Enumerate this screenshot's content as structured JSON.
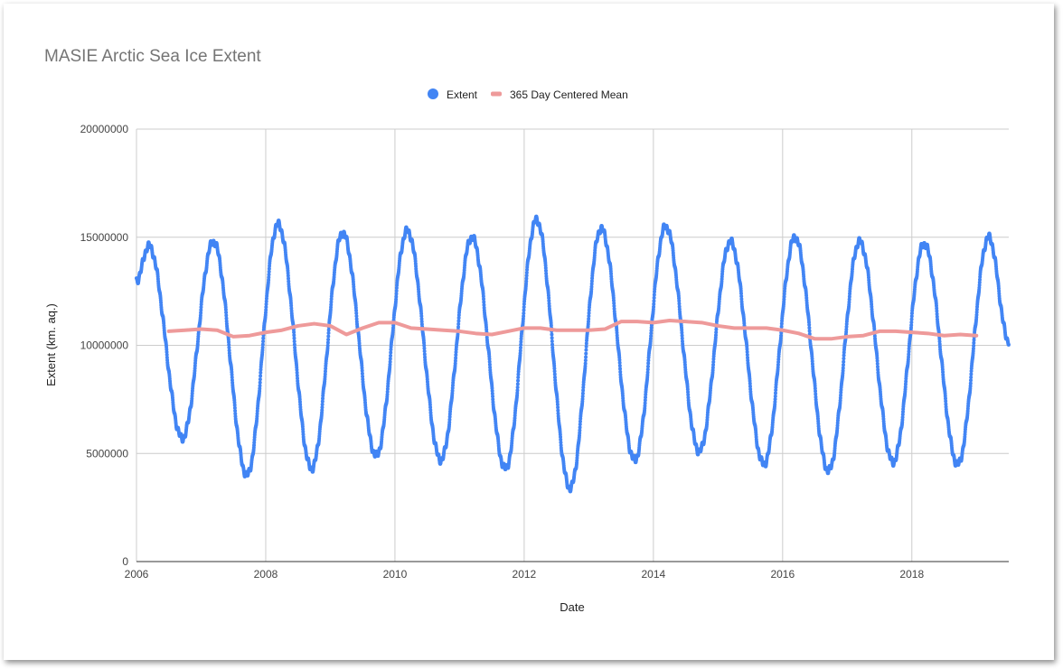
{
  "chart_data": {
    "type": "scatter",
    "title": "MASIE Arctic Sea Ice Extent",
    "xlabel": "Date",
    "ylabel": "Extent (km. aq.)",
    "xlim": [
      2006,
      2019.5
    ],
    "ylim": [
      0,
      20000000
    ],
    "x_ticks": [
      "2006",
      "2008",
      "2010",
      "2012",
      "2014",
      "2016",
      "2018"
    ],
    "y_ticks": [
      "0",
      "5000000",
      "10000000",
      "15000000",
      "20000000"
    ],
    "grid": true,
    "legend_position": "top-center",
    "series": [
      {
        "name": "Extent",
        "kind": "points",
        "color": "#4285f4",
        "yearly_extremes": [
          {
            "year": 2006,
            "max": 14600000,
            "min": 5700000
          },
          {
            "year": 2007,
            "max": 14800000,
            "min": 4000000
          },
          {
            "year": 2008,
            "max": 15600000,
            "min": 4300000
          },
          {
            "year": 2009,
            "max": 15200000,
            "min": 4900000
          },
          {
            "year": 2010,
            "max": 15300000,
            "min": 4700000
          },
          {
            "year": 2011,
            "max": 15000000,
            "min": 4300000
          },
          {
            "year": 2012,
            "max": 15800000,
            "min": 3400000
          },
          {
            "year": 2013,
            "max": 15400000,
            "min": 4700000
          },
          {
            "year": 2014,
            "max": 15500000,
            "min": 5100000
          },
          {
            "year": 2015,
            "max": 14800000,
            "min": 4500000
          },
          {
            "year": 2016,
            "max": 15000000,
            "min": 4200000
          },
          {
            "year": 2017,
            "max": 14800000,
            "min": 4600000
          },
          {
            "year": 2018,
            "max": 14700000,
            "min": 4500000
          },
          {
            "year": 2019,
            "max": 15000000,
            "min": null
          }
        ],
        "start": {
          "x": 2006.0,
          "y": 13000000
        },
        "end": {
          "x": 2019.5,
          "y": 10200000
        }
      },
      {
        "name": "365 Day Centered Mean",
        "kind": "line",
        "color": "#ee9a9a",
        "x": [
          2006.5,
          2006.75,
          2007.0,
          2007.25,
          2007.5,
          2007.75,
          2008.0,
          2008.25,
          2008.5,
          2008.75,
          2009.0,
          2009.25,
          2009.5,
          2009.75,
          2010.0,
          2010.25,
          2010.5,
          2010.75,
          2011.0,
          2011.25,
          2011.5,
          2011.75,
          2012.0,
          2012.25,
          2012.5,
          2012.75,
          2013.0,
          2013.25,
          2013.5,
          2013.75,
          2014.0,
          2014.25,
          2014.5,
          2014.75,
          2015.0,
          2015.25,
          2015.5,
          2015.75,
          2016.0,
          2016.25,
          2016.5,
          2016.75,
          2017.0,
          2017.25,
          2017.5,
          2017.75,
          2018.0,
          2018.25,
          2018.5,
          2018.75,
          2019.0
        ],
        "y": [
          10650000,
          10700000,
          10750000,
          10700000,
          10400000,
          10450000,
          10600000,
          10700000,
          10900000,
          11000000,
          10900000,
          10500000,
          10800000,
          11050000,
          11050000,
          10800000,
          10750000,
          10700000,
          10650000,
          10550000,
          10500000,
          10650000,
          10800000,
          10800000,
          10700000,
          10700000,
          10700000,
          10750000,
          11100000,
          11100000,
          11050000,
          11150000,
          11100000,
          11050000,
          10900000,
          10800000,
          10800000,
          10800000,
          10700000,
          10550000,
          10300000,
          10300000,
          10400000,
          10450000,
          10650000,
          10650000,
          10600000,
          10550000,
          10450000,
          10500000,
          10450000
        ]
      }
    ]
  }
}
